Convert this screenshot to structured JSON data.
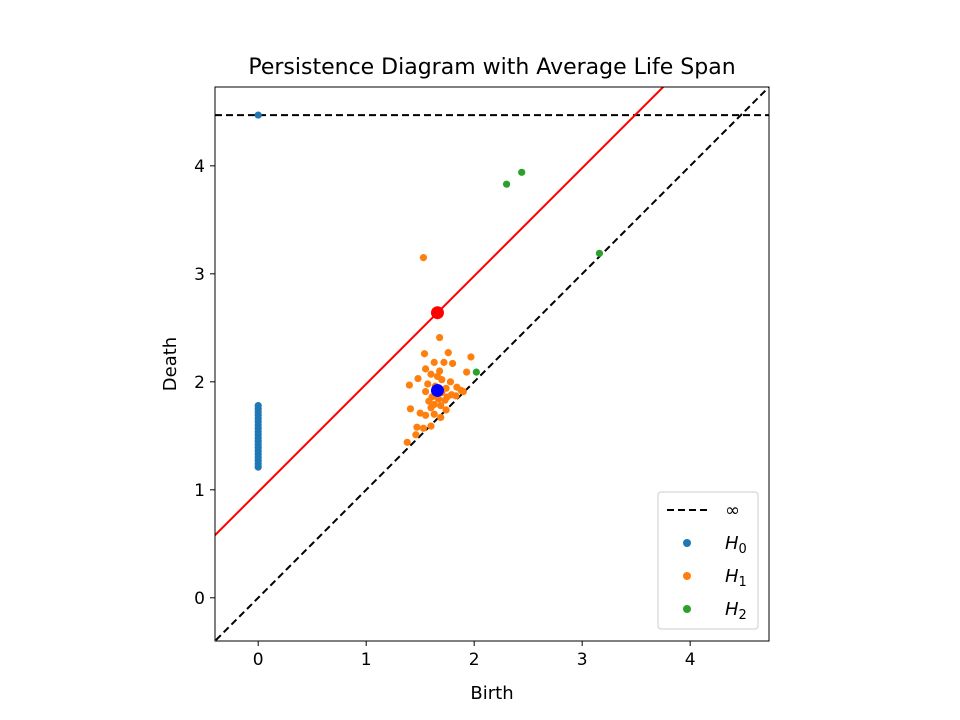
{
  "chart_data": {
    "type": "scatter",
    "title": "Persistence Diagram with Average Life Span",
    "xlabel": "Birth",
    "ylabel": "Death",
    "xlim": [
      -0.4,
      4.73
    ],
    "ylim": [
      -0.4,
      4.73
    ],
    "xticks": [
      0,
      1,
      2,
      3,
      4
    ],
    "yticks": [
      0,
      1,
      2,
      3,
      4
    ],
    "xtick_labels": [
      "0",
      "1",
      "2",
      "3",
      "4"
    ],
    "ytick_labels": [
      "0",
      "1",
      "2",
      "3",
      "4"
    ],
    "grid": false,
    "infinity_level": 4.47,
    "reference_lines": [
      {
        "kind": "diagonal",
        "slope": 1,
        "intercept": 0,
        "style": "dashed",
        "color": "#000000"
      },
      {
        "kind": "infinity",
        "style": "dashed",
        "color": "#000000"
      },
      {
        "kind": "average-life-span",
        "slope": 1,
        "intercept": 0.98,
        "style": "solid",
        "color": "#ff0000"
      }
    ],
    "markers": [
      {
        "x": 1.66,
        "y": 2.64,
        "color": "#ff0000"
      },
      {
        "x": 1.66,
        "y": 1.92,
        "color": "#0000ff"
      }
    ],
    "legend": {
      "position": "lower right",
      "entries": [
        {
          "label": "∞",
          "kind": "line",
          "color": "#000000"
        },
        {
          "label": "H",
          "sub": "0",
          "kind": "point",
          "color": "#1f77b4"
        },
        {
          "label": "H",
          "sub": "1",
          "kind": "point",
          "color": "#ff7f0e"
        },
        {
          "label": "H",
          "sub": "2",
          "kind": "point",
          "color": "#2ca02c"
        }
      ]
    },
    "series": [
      {
        "name": "H0",
        "color": "#1f77b4",
        "points": [
          [
            0,
            4.47
          ],
          [
            0,
            1.21
          ],
          [
            0,
            1.24
          ],
          [
            0,
            1.27
          ],
          [
            0,
            1.3
          ],
          [
            0,
            1.33
          ],
          [
            0,
            1.36
          ],
          [
            0,
            1.39
          ],
          [
            0,
            1.42
          ],
          [
            0,
            1.45
          ],
          [
            0,
            1.48
          ],
          [
            0,
            1.51
          ],
          [
            0,
            1.54
          ],
          [
            0,
            1.57
          ],
          [
            0,
            1.6
          ],
          [
            0,
            1.63
          ],
          [
            0,
            1.66
          ],
          [
            0,
            1.69
          ],
          [
            0,
            1.72
          ],
          [
            0,
            1.75
          ],
          [
            0,
            1.78
          ]
        ]
      },
      {
        "name": "H1",
        "color": "#ff7f0e",
        "points": [
          [
            1.53,
            3.15
          ],
          [
            1.68,
            2.41
          ],
          [
            1.76,
            2.27
          ],
          [
            1.54,
            2.26
          ],
          [
            1.97,
            2.23
          ],
          [
            1.63,
            2.18
          ],
          [
            1.72,
            2.18
          ],
          [
            1.8,
            2.17
          ],
          [
            1.55,
            2.12
          ],
          [
            1.68,
            2.1
          ],
          [
            1.93,
            2.09
          ],
          [
            1.6,
            2.07
          ],
          [
            1.66,
            2.05
          ],
          [
            1.48,
            2.03
          ],
          [
            1.7,
            2.02
          ],
          [
            1.78,
            2.0
          ],
          [
            1.4,
            1.97
          ],
          [
            1.57,
            1.98
          ],
          [
            1.64,
            1.96
          ],
          [
            1.74,
            1.94
          ],
          [
            1.84,
            1.95
          ],
          [
            1.88,
            1.92
          ],
          [
            1.55,
            1.91
          ],
          [
            1.7,
            1.9
          ],
          [
            1.79,
            1.88
          ],
          [
            1.61,
            1.86
          ],
          [
            1.67,
            1.84
          ],
          [
            1.73,
            1.83
          ],
          [
            1.58,
            1.82
          ],
          [
            1.63,
            1.79
          ],
          [
            1.69,
            1.78
          ],
          [
            1.6,
            1.76
          ],
          [
            1.41,
            1.75
          ],
          [
            1.74,
            1.74
          ],
          [
            1.5,
            1.71
          ],
          [
            1.63,
            1.7
          ],
          [
            1.55,
            1.69
          ],
          [
            1.69,
            1.67
          ],
          [
            1.47,
            1.58
          ],
          [
            1.53,
            1.57
          ],
          [
            1.6,
            1.59
          ],
          [
            1.46,
            1.51
          ],
          [
            1.38,
            1.44
          ],
          [
            1.9,
            1.91
          ],
          [
            1.83,
            1.87
          ],
          [
            1.75,
            1.86
          ],
          [
            1.65,
            1.88
          ]
        ]
      },
      {
        "name": "H2",
        "color": "#2ca02c",
        "points": [
          [
            2.44,
            3.94
          ],
          [
            2.3,
            3.83
          ],
          [
            3.16,
            3.19
          ],
          [
            2.02,
            2.09
          ]
        ]
      }
    ]
  }
}
